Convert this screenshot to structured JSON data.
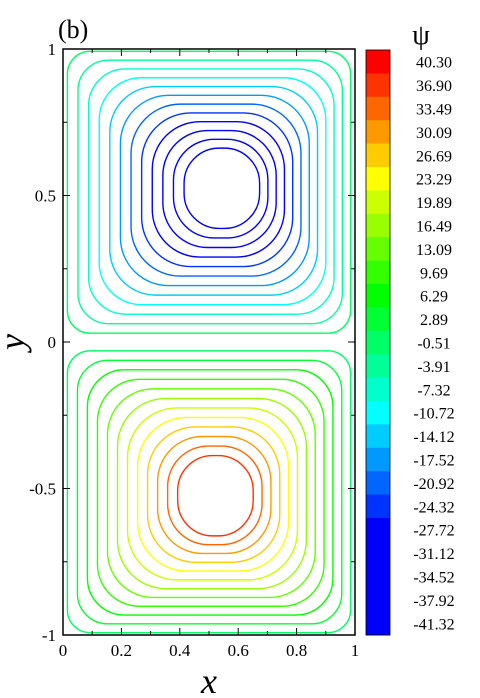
{
  "panel_label": "(b)",
  "chart_data": {
    "type": "contour",
    "xlabel": "x",
    "ylabel": "y",
    "xlim": [
      0,
      1
    ],
    "ylim": [
      -1,
      1
    ],
    "xticks": [
      "0",
      "0.2",
      "0.4",
      "0.6",
      "0.8",
      "1"
    ],
    "xtick_values": [
      0,
      0.2,
      0.4,
      0.6,
      0.8,
      1
    ],
    "yticks": [
      "-1",
      "-0.5",
      "0",
      "0.5",
      "1"
    ],
    "ytick_values": [
      -1,
      -0.5,
      0,
      0.5,
      1
    ],
    "colorbar_title": "ψ",
    "levels": [
      "40.30",
      "36.90",
      "33.49",
      "30.09",
      "26.69",
      "23.29",
      "19.89",
      "16.49",
      "13.09",
      "9.69",
      "6.29",
      "2.89",
      "-0.51",
      "-3.91",
      "-7.32",
      "-10.72",
      "-14.12",
      "-17.52",
      "-20.92",
      "-24.32",
      "-27.72",
      "-31.12",
      "-34.52",
      "-37.92",
      "-41.32"
    ],
    "level_colors": [
      "#ff0000",
      "#ff3300",
      "#ff6600",
      "#ff9900",
      "#ffcc00",
      "#ffff00",
      "#ccff00",
      "#99ff00",
      "#66ff00",
      "#33ff00",
      "#00ff00",
      "#00ff33",
      "#00ff66",
      "#00ff99",
      "#00ffcc",
      "#00ffff",
      "#00ccff",
      "#0099ff",
      "#0066ff",
      "#0033ff",
      "#0000ff",
      "#0000ff",
      "#0000ff",
      "#0000ff",
      "#0000ff"
    ],
    "vortices": [
      {
        "name": "upper",
        "sign": "negative",
        "center": [
          0.56,
          0.53
        ],
        "contour_levels_psi": [
          -38,
          -35,
          -31,
          -28,
          -24,
          -21,
          -17.5,
          -14,
          -10.7,
          -7.3,
          -3.9,
          -0.5
        ]
      },
      {
        "name": "lower",
        "sign": "positive",
        "center": [
          0.53,
          -0.53
        ],
        "contour_levels_psi": [
          37,
          33.5,
          30,
          26.7,
          23.3,
          19.9,
          16.5,
          13,
          9.7,
          6.3,
          2.9,
          -0.5
        ]
      }
    ]
  }
}
